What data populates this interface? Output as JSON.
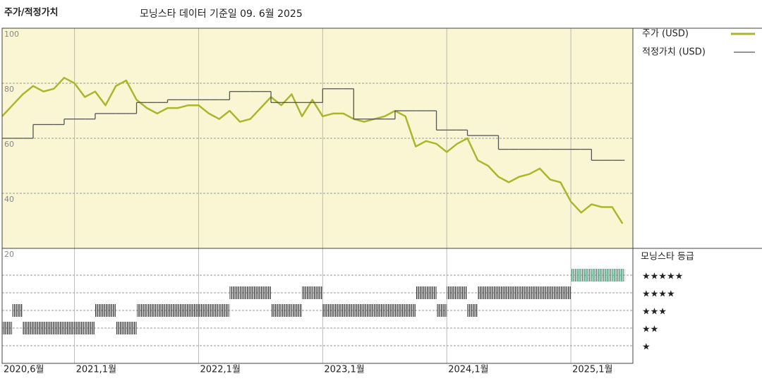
{
  "chart_data": {
    "type": "line",
    "title": "주가/적정가치",
    "subtitle": "모닝스타 데이터 기준일 09. 6월 2025",
    "x": [
      "2020-06",
      "2020-07",
      "2020-08",
      "2020-09",
      "2020-10",
      "2020-11",
      "2020-12",
      "2021-01",
      "2021-02",
      "2021-03",
      "2021-04",
      "2021-05",
      "2021-06",
      "2021-07",
      "2021-08",
      "2021-09",
      "2021-10",
      "2021-11",
      "2021-12",
      "2022-01",
      "2022-02",
      "2022-03",
      "2022-04",
      "2022-05",
      "2022-06",
      "2022-07",
      "2022-08",
      "2022-09",
      "2022-10",
      "2022-11",
      "2022-12",
      "2023-01",
      "2023-02",
      "2023-03",
      "2023-04",
      "2023-05",
      "2023-06",
      "2023-07",
      "2023-08",
      "2023-09",
      "2023-10",
      "2023-11",
      "2023-12",
      "2024-01",
      "2024-02",
      "2024-03",
      "2024-04",
      "2024-05",
      "2024-06",
      "2024-07",
      "2024-08",
      "2024-09",
      "2024-10",
      "2024-11",
      "2024-12",
      "2025-01",
      "2025-02",
      "2025-03",
      "2025-04",
      "2025-05",
      "2025-06"
    ],
    "series": [
      {
        "name": "주가 (USD)",
        "color": "#aab62c",
        "values": [
          68,
          72,
          76,
          79,
          77,
          78,
          82,
          80,
          75,
          77,
          72,
          79,
          81,
          74,
          71,
          69,
          71,
          71,
          72,
          72,
          69,
          67,
          70,
          66,
          67,
          71,
          75,
          72,
          76,
          68,
          74,
          68,
          69,
          69,
          67,
          66,
          67,
          68,
          70,
          68,
          57,
          59,
          58,
          55,
          58,
          60,
          52,
          50,
          46,
          44,
          46,
          47,
          49,
          45,
          44,
          37,
          33,
          36,
          35,
          35,
          29
        ]
      },
      {
        "name": "적정가치 (USD)",
        "color": "#555555",
        "step": true,
        "values": [
          60,
          60,
          60,
          65,
          65,
          65,
          67,
          67,
          67,
          69,
          69,
          69,
          69,
          73,
          73,
          73,
          74,
          74,
          74,
          74,
          74,
          74,
          77,
          77,
          77,
          77,
          73,
          73,
          73,
          73,
          73,
          78,
          78,
          78,
          67,
          67,
          67,
          67,
          70,
          70,
          70,
          70,
          63,
          63,
          63,
          61,
          61,
          61,
          56,
          56,
          56,
          56,
          56,
          56,
          56,
          56,
          56,
          52,
          52,
          52,
          52
        ]
      }
    ],
    "xlim": [
      "2020-06",
      "2025-07"
    ],
    "xticks": [
      {
        "value": "2020-06",
        "label": "2020,6월"
      },
      {
        "value": "2021-01",
        "label": "2021,1월"
      },
      {
        "value": "2022-01",
        "label": "2022,1월"
      },
      {
        "value": "2023-01",
        "label": "2023,1월"
      },
      {
        "value": "2024-01",
        "label": "2024,1월"
      },
      {
        "value": "2025-01",
        "label": "2025,1월"
      }
    ],
    "ylim": [
      20,
      100
    ],
    "yticks": [
      20,
      40,
      60,
      80,
      100
    ],
    "grid": true,
    "ratings": {
      "name": "모닝스타 등급",
      "color": "#333333",
      "top_color": "#3d8a6b",
      "labels": [
        "★★★★★",
        "★★★★",
        "★★★",
        "★★",
        "★"
      ],
      "values": [
        2,
        3,
        2,
        2,
        2,
        2,
        2,
        2,
        2,
        3,
        3,
        2,
        2,
        3,
        3,
        3,
        3,
        3,
        3,
        3,
        3,
        3,
        4,
        4,
        4,
        4,
        3,
        3,
        3,
        4,
        4,
        3,
        3,
        3,
        3,
        3,
        3,
        3,
        3,
        3,
        4,
        4,
        3,
        4,
        4,
        3,
        4,
        4,
        4,
        4,
        4,
        4,
        4,
        4,
        4,
        5,
        5,
        5,
        5,
        5,
        5
      ]
    }
  }
}
